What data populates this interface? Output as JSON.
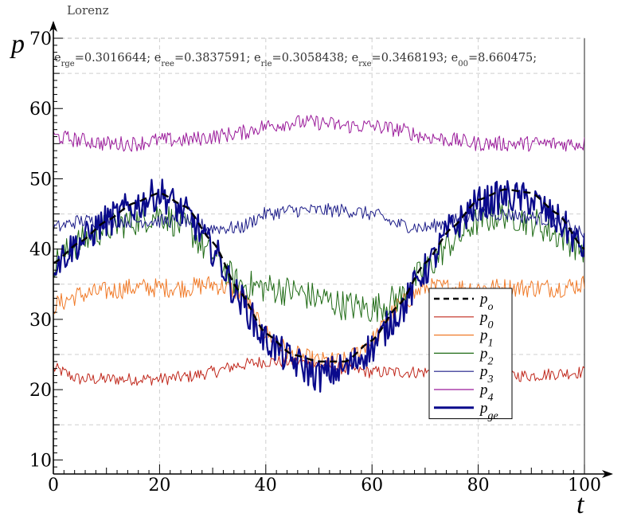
{
  "chart_data": {
    "type": "line",
    "title": "Lorenz",
    "xlabel": "t",
    "ylabel": "p",
    "xlim": [
      0,
      100
    ],
    "ylim": [
      8,
      70
    ],
    "xticks": [
      0,
      20,
      40,
      60,
      80,
      100
    ],
    "yticks": [
      10,
      20,
      30,
      40,
      50,
      60,
      70
    ],
    "grid": true,
    "legend_position": "bottom-right",
    "annotation": {
      "parts": [
        {
          "base": "e",
          "sub": "rge",
          "value": "=0.3016644;"
        },
        {
          "base": "e",
          "sub": "ree",
          "value": "=0.3837591;"
        },
        {
          "base": "e",
          "sub": "rle",
          "value": "=0.3058438;"
        },
        {
          "base": "e",
          "sub": "rxe",
          "value": "=0.3468193;"
        },
        {
          "base": "e",
          "sub": "00",
          "value": "=8.660475;"
        }
      ]
    },
    "x": [
      0,
      5,
      10,
      15,
      20,
      25,
      30,
      35,
      40,
      45,
      50,
      55,
      60,
      65,
      70,
      75,
      80,
      85,
      90,
      95,
      100
    ],
    "series": [
      {
        "name": "o",
        "color": "#000000",
        "dash": "dashed",
        "noise": 0,
        "values": [
          38,
          41,
          44,
          46.5,
          48,
          46,
          41,
          34,
          28,
          25,
          24,
          24,
          27,
          32,
          38,
          43,
          47,
          48.5,
          48,
          45,
          40
        ]
      },
      {
        "name": "0",
        "color": "#c0281c",
        "dash": "solid",
        "noise": 0.9,
        "values": [
          23,
          21.5,
          21.5,
          21.5,
          21.5,
          21.8,
          22.5,
          23.5,
          24,
          24,
          23.5,
          23,
          22.5,
          22.5,
          22.5,
          22.5,
          22,
          22,
          22,
          22.3,
          22.5
        ]
      },
      {
        "name": "1",
        "color": "#f07a28",
        "dash": "solid",
        "noise": 1.4,
        "values": [
          32,
          33.5,
          34,
          34.5,
          34.5,
          34.5,
          35,
          34,
          28,
          25,
          24,
          24,
          27,
          32,
          34.5,
          34.5,
          34.5,
          34.5,
          34.5,
          34.5,
          35
        ]
      },
      {
        "name": "2",
        "color": "#1e6a14",
        "dash": "solid",
        "noise": 2.2,
        "values": [
          38,
          41,
          43,
          44,
          45,
          43,
          39,
          35,
          34.5,
          34,
          33,
          32,
          31.5,
          33,
          37,
          41,
          44,
          45,
          44,
          42,
          40
        ]
      },
      {
        "name": "3",
        "color": "#1c1c88",
        "dash": "solid",
        "noise": 1.0,
        "values": [
          43,
          44,
          44,
          44,
          44,
          44,
          43,
          43,
          45,
          45.5,
          45.5,
          45.5,
          45,
          43.5,
          43,
          44,
          45,
          45,
          44.5,
          44,
          42
        ]
      },
      {
        "name": "4",
        "color": "#9a1a9a",
        "dash": "solid",
        "noise": 1.1,
        "values": [
          56,
          55.5,
          55,
          55,
          55.5,
          55.5,
          56,
          56.5,
          57.5,
          58,
          58,
          57.5,
          57.5,
          57,
          56,
          55.5,
          55,
          55,
          55,
          55,
          55
        ]
      },
      {
        "name": "ge",
        "color": "#0a0a8c",
        "dash": "solid",
        "noise": 2.4,
        "thick": true,
        "values": [
          38,
          41,
          44,
          46,
          48,
          45,
          40,
          33,
          27,
          24,
          22,
          23,
          26,
          31,
          37,
          43,
          46.5,
          47.5,
          47,
          44,
          40
        ]
      }
    ]
  }
}
